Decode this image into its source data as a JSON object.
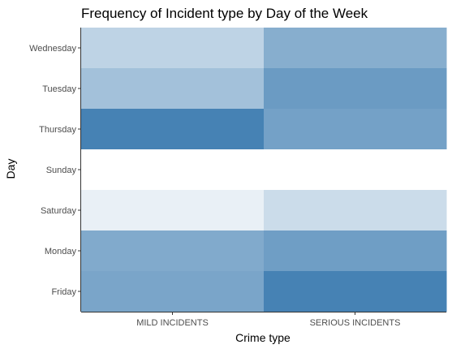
{
  "chart_data": {
    "type": "heatmap",
    "title": "Frequency of Incident type by Day of the Week",
    "xlabel": "Crime type",
    "ylabel": "Day",
    "x_categories": [
      "MILD INCIDENTS",
      "SERIOUS INCIDENTS"
    ],
    "y_categories": [
      "Wednesday",
      "Tuesday",
      "Thursday",
      "Sunday",
      "Saturday",
      "Monday",
      "Friday"
    ],
    "values": [
      [
        0.35,
        0.65
      ],
      [
        0.5,
        0.8
      ],
      [
        1.0,
        0.75
      ],
      [
        0.0,
        0.0
      ],
      [
        0.12,
        0.28
      ],
      [
        0.68,
        0.78
      ],
      [
        0.72,
        1.0
      ]
    ],
    "color_low": "#ffffff",
    "color_high": "#4682b4",
    "grid": false,
    "legend": "none"
  }
}
